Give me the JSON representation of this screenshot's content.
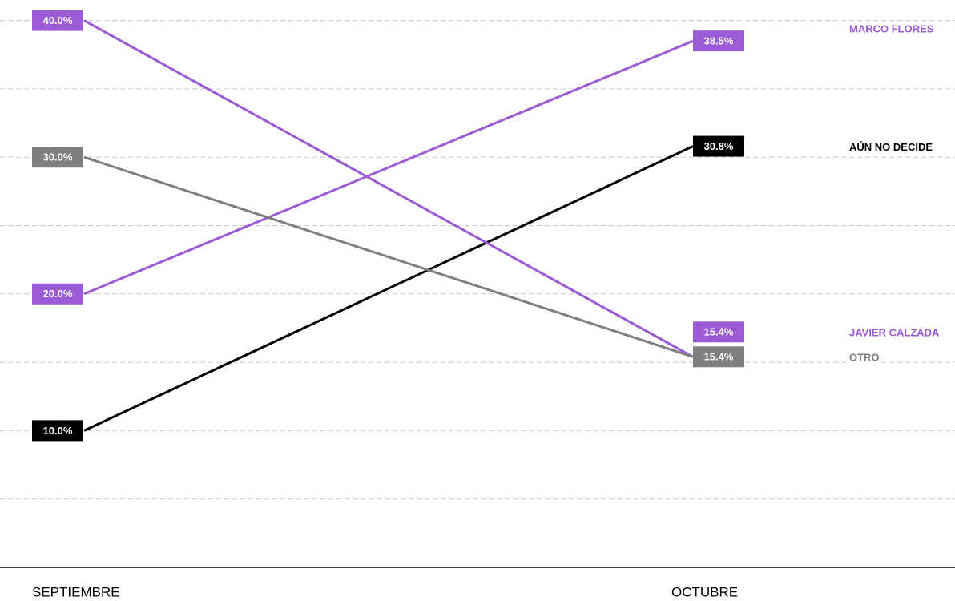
{
  "chart_data": {
    "type": "slope",
    "categories": [
      "SEPTIEMBRE",
      "OCTUBRE"
    ],
    "ylim": [
      0,
      41.5
    ],
    "yticks": [
      5,
      10,
      15,
      20,
      25,
      30,
      35,
      40
    ],
    "grid": true,
    "series": [
      {
        "name": "MARCO FLORES",
        "color": "#9b5bd4",
        "values": [
          20.0,
          38.5
        ],
        "value_labels": [
          "20.0%",
          "38.5%"
        ]
      },
      {
        "name": "AÚN NO DECIDE",
        "color": "#000000",
        "values": [
          10.0,
          30.8
        ],
        "value_labels": [
          "10.0%",
          "30.8%"
        ]
      },
      {
        "name": "JAVIER CALZADA",
        "color": "#9b5bd4",
        "values": [
          40.0,
          15.4
        ],
        "value_labels": [
          "40.0%",
          "15.4%"
        ]
      },
      {
        "name": "OTRO",
        "color": "#7f7f7f",
        "values": [
          30.0,
          15.4
        ],
        "value_labels": [
          "30.0%",
          "15.4%"
        ]
      }
    ]
  }
}
